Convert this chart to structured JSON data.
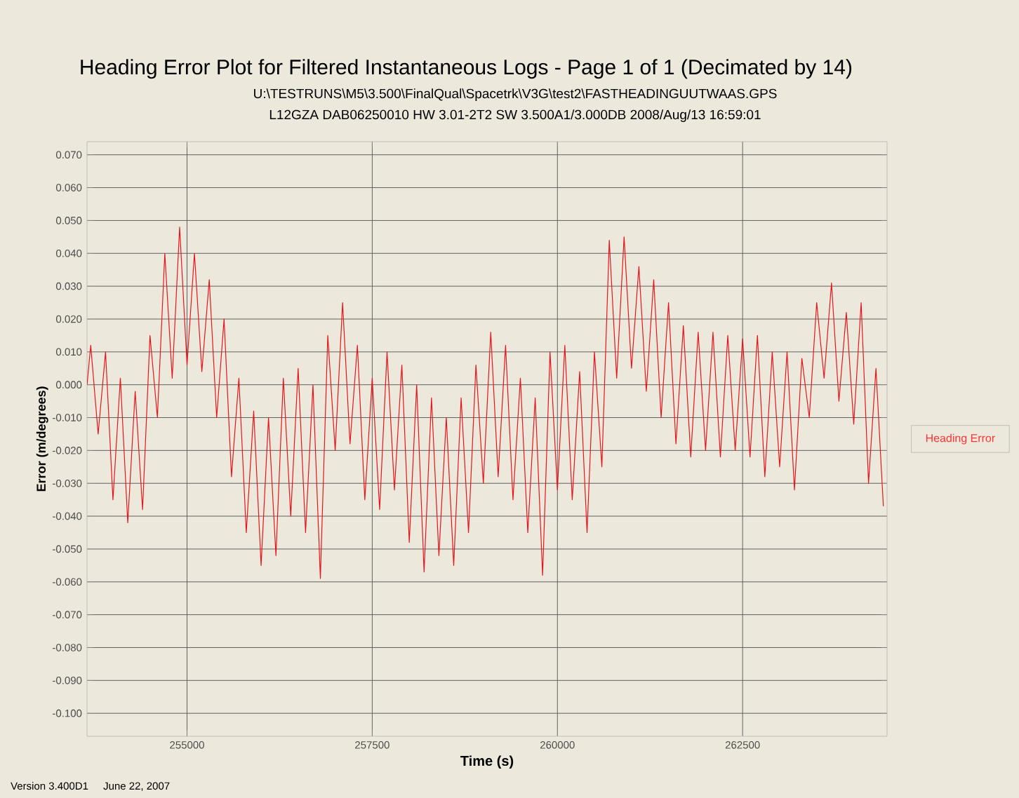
{
  "chart_data": {
    "type": "line",
    "title": "Heading Error Plot for Filtered Instantaneous Logs - Page 1 of 1 (Decimated by 14)",
    "subtitle": "U:\\TESTRUNS\\M5\\3.500\\FinalQual\\Spacetrk\\V3G\\test2\\FASTHEADINGUUTWAAS.GPS",
    "annotations": [
      "L12GZA DAB06250010 HW 3.01-2T2 SW 3.500A1/3.000DB 2008/Aug/13 16:59:01",
      "Version 3.400D1",
      "June 22, 2007"
    ],
    "xlabel": "Time (s)",
    "ylabel": "Error (m/degrees)",
    "xlim": [
      253650,
      264450
    ],
    "ylim": [
      -0.107,
      0.074
    ],
    "xticks": [
      255000,
      257500,
      260000,
      262500
    ],
    "yticks": [
      {
        "value": 0.07,
        "label": "0.070"
      },
      {
        "value": 0.06,
        "label": "0.060"
      },
      {
        "value": 0.05,
        "label": "0.050"
      },
      {
        "value": 0.04,
        "label": "0.040"
      },
      {
        "value": 0.03,
        "label": "0.030"
      },
      {
        "value": 0.02,
        "label": "0.020"
      },
      {
        "value": 0.01,
        "label": "0.010"
      },
      {
        "value": 0.0,
        "label": "0.000"
      },
      {
        "value": -0.01,
        "label": "-0.010"
      },
      {
        "value": -0.02,
        "label": "-0.020"
      },
      {
        "value": -0.03,
        "label": "-0.030"
      },
      {
        "value": -0.04,
        "label": "-0.040"
      },
      {
        "value": -0.05,
        "label": "-0.050"
      },
      {
        "value": -0.06,
        "label": "-0.060"
      },
      {
        "value": -0.07,
        "label": "-0.070"
      },
      {
        "value": -0.08,
        "label": "-0.080"
      },
      {
        "value": -0.09,
        "label": "-0.090"
      },
      {
        "value": -0.1,
        "label": "-0.100"
      }
    ],
    "grid": true,
    "legend": "right",
    "marker": "none",
    "line_style": "solid",
    "x": [
      253650,
      253700,
      253800,
      253900,
      254000,
      254100,
      254200,
      254300,
      254400,
      254500,
      254600,
      254700,
      254800,
      254900,
      255000,
      255100,
      255200,
      255300,
      255400,
      255500,
      255600,
      255700,
      255800,
      255900,
      256000,
      256100,
      256200,
      256300,
      256400,
      256500,
      256600,
      256700,
      256800,
      256900,
      257000,
      257100,
      257200,
      257300,
      257400,
      257500,
      257600,
      257700,
      257800,
      257900,
      258000,
      258100,
      258200,
      258300,
      258400,
      258500,
      258600,
      258700,
      258800,
      258900,
      259000,
      259100,
      259200,
      259300,
      259400,
      259500,
      259600,
      259700,
      259800,
      259900,
      260000,
      260100,
      260200,
      260300,
      260400,
      260500,
      260600,
      260700,
      260800,
      260900,
      261000,
      261100,
      261200,
      261300,
      261400,
      261500,
      261600,
      261700,
      261800,
      261900,
      262000,
      262100,
      262200,
      262300,
      262400,
      262500,
      262600,
      262700,
      262800,
      262900,
      263000,
      263100,
      263200,
      263300,
      263400,
      263500,
      263600,
      263700,
      263800,
      263900,
      264000,
      264100,
      264200,
      264300,
      264400
    ],
    "series": [
      {
        "name": "Heading Error",
        "color": "#e8141c",
        "values": [
          0.0,
          0.012,
          -0.015,
          0.01,
          -0.035,
          0.002,
          -0.042,
          -0.002,
          -0.038,
          0.015,
          -0.01,
          0.04,
          0.002,
          0.048,
          0.006,
          0.04,
          0.004,
          0.032,
          -0.01,
          0.02,
          -0.028,
          0.002,
          -0.045,
          -0.008,
          -0.055,
          -0.01,
          -0.052,
          0.002,
          -0.04,
          0.005,
          -0.045,
          0.0,
          -0.059,
          0.015,
          -0.02,
          0.025,
          -0.018,
          0.012,
          -0.035,
          0.002,
          -0.038,
          0.01,
          -0.032,
          0.006,
          -0.048,
          0.0,
          -0.057,
          -0.004,
          -0.052,
          -0.01,
          -0.055,
          -0.004,
          -0.045,
          0.006,
          -0.03,
          0.016,
          -0.028,
          0.012,
          -0.035,
          0.002,
          -0.045,
          -0.004,
          -0.058,
          0.01,
          -0.032,
          0.012,
          -0.035,
          0.004,
          -0.045,
          0.01,
          -0.025,
          0.044,
          0.002,
          0.045,
          0.005,
          0.036,
          -0.002,
          0.032,
          -0.01,
          0.025,
          -0.018,
          0.018,
          -0.022,
          0.016,
          -0.02,
          0.016,
          -0.022,
          0.015,
          -0.02,
          0.014,
          -0.022,
          0.015,
          -0.028,
          0.01,
          -0.025,
          0.01,
          -0.032,
          0.008,
          -0.01,
          0.025,
          0.002,
          0.031,
          -0.005,
          0.022,
          -0.012,
          0.025,
          -0.03,
          0.005,
          -0.037
        ]
      }
    ]
  }
}
